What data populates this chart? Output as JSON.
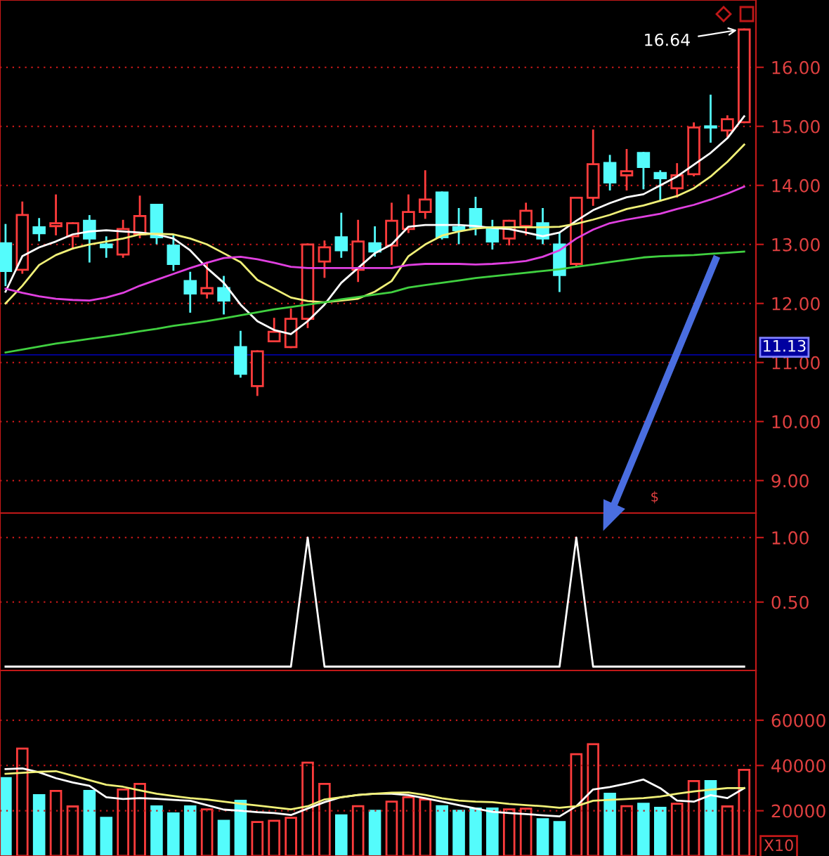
{
  "chart_data": [
    {
      "type": "candlestick",
      "categories": [
        null,
        null,
        null,
        null,
        null,
        null,
        null,
        null,
        null,
        null,
        null,
        null,
        null,
        null,
        null,
        null,
        null,
        null,
        null,
        null,
        null,
        null,
        null,
        null,
        null,
        null,
        null,
        null,
        null,
        null,
        null,
        null,
        null,
        null,
        null,
        null,
        null,
        null,
        null,
        null,
        null,
        null,
        null,
        null,
        null
      ],
      "ohlc": [
        [
          13.02,
          13.33,
          12.31,
          12.55
        ],
        [
          12.57,
          13.71,
          12.52,
          13.5
        ],
        [
          13.29,
          13.43,
          13.07,
          13.19
        ],
        [
          13.31,
          13.83,
          13.17,
          13.36
        ],
        [
          13.14,
          13.36,
          12.93,
          13.36
        ],
        [
          13.4,
          13.48,
          12.71,
          13.1
        ],
        [
          13.0,
          13.12,
          12.79,
          12.95
        ],
        [
          12.83,
          13.4,
          12.79,
          13.26
        ],
        [
          13.17,
          13.81,
          13.12,
          13.48
        ],
        [
          13.67,
          13.67,
          13.02,
          13.12
        ],
        [
          12.98,
          13.14,
          12.57,
          12.67
        ],
        [
          12.38,
          12.52,
          11.86,
          12.17
        ],
        [
          12.17,
          12.69,
          12.1,
          12.26
        ],
        [
          12.26,
          12.45,
          11.83,
          12.05
        ],
        [
          11.26,
          11.52,
          10.76,
          10.81
        ],
        [
          10.6,
          11.19,
          10.45,
          11.19
        ],
        [
          11.36,
          11.74,
          11.36,
          11.52
        ],
        [
          11.26,
          11.9,
          11.26,
          11.74
        ],
        [
          11.74,
          13.0,
          11.6,
          13.0
        ],
        [
          12.71,
          13.05,
          12.45,
          12.95
        ],
        [
          13.12,
          13.52,
          12.79,
          12.9
        ],
        [
          12.57,
          13.4,
          12.38,
          13.05
        ],
        [
          13.02,
          13.29,
          12.81,
          12.88
        ],
        [
          12.98,
          13.69,
          12.67,
          13.4
        ],
        [
          13.26,
          13.83,
          13.21,
          13.55
        ],
        [
          13.55,
          14.24,
          13.45,
          13.76
        ],
        [
          13.88,
          13.88,
          13.1,
          13.12
        ],
        [
          13.29,
          13.6,
          13.02,
          13.24
        ],
        [
          13.6,
          13.79,
          13.17,
          13.29
        ],
        [
          13.29,
          13.4,
          12.93,
          13.05
        ],
        [
          13.1,
          13.4,
          13.0,
          13.4
        ],
        [
          13.31,
          13.69,
          13.17,
          13.57
        ],
        [
          13.36,
          13.6,
          13.02,
          13.1
        ],
        [
          13.0,
          13.19,
          12.21,
          12.48
        ],
        [
          12.67,
          13.79,
          12.64,
          13.79
        ],
        [
          13.79,
          14.93,
          13.67,
          14.36
        ],
        [
          14.38,
          14.5,
          13.93,
          14.05
        ],
        [
          14.17,
          14.6,
          13.93,
          14.24
        ],
        [
          14.55,
          14.55,
          13.95,
          14.31
        ],
        [
          14.21,
          14.24,
          13.74,
          14.12
        ],
        [
          13.95,
          14.36,
          13.81,
          14.17
        ],
        [
          14.19,
          15.05,
          14.17,
          14.98
        ],
        [
          15.0,
          15.52,
          14.74,
          14.98
        ],
        [
          14.93,
          15.17,
          14.83,
          15.12
        ],
        [
          15.07,
          16.64,
          15.07,
          16.64
        ]
      ],
      "colors": [
        "#54fcfc",
        "#ff3c3c",
        "#54fcfc",
        "#ff3c3c",
        "#ff3c3c",
        "#54fcfc",
        "#54fcfc",
        "#ff3c3c",
        "#ff3c3c",
        "#54fcfc",
        "#54fcfc",
        "#54fcfc",
        "#ff3c3c",
        "#54fcfc",
        "#54fcfc",
        "#ff3c3c",
        "#ff3c3c",
        "#ff3c3c",
        "#ff3c3c",
        "#ff3c3c",
        "#54fcfc",
        "#ff3c3c",
        "#54fcfc",
        "#ff3c3c",
        "#ff3c3c",
        "#ff3c3c",
        "#54fcfc",
        "#54fcfc",
        "#54fcfc",
        "#54fcfc",
        "#ff3c3c",
        "#ff3c3c",
        "#54fcfc",
        "#54fcfc",
        "#ff3c3c",
        "#ff3c3c",
        "#54fcfc",
        "#ff3c3c",
        "#54fcfc",
        "#54fcfc",
        "#ff3c3c",
        "#ff3c3c",
        "#54fcfc",
        "#ff3c3c",
        "#ff3c3c"
      ],
      "series": [
        {
          "type": "line",
          "color": "#ffffff",
          "values": [
            12.2,
            12.8,
            12.95,
            13.05,
            13.17,
            13.22,
            13.24,
            13.22,
            13.2,
            13.17,
            13.1,
            12.9,
            12.6,
            12.35,
            11.98,
            11.7,
            11.55,
            11.48,
            11.7,
            11.98,
            12.35,
            12.6,
            12.85,
            13.0,
            13.3,
            13.33,
            13.33,
            13.33,
            13.31,
            13.28,
            13.26,
            13.2,
            13.14,
            13.2,
            13.4,
            13.58,
            13.7,
            13.8,
            13.85,
            14.0,
            14.15,
            14.35,
            14.55,
            14.8,
            15.17
          ]
        },
        {
          "type": "line",
          "color": "#f0f078",
          "values": [
            12.0,
            12.3,
            12.65,
            12.82,
            12.93,
            13.0,
            13.05,
            13.1,
            13.17,
            13.18,
            13.17,
            13.1,
            13.0,
            12.85,
            12.7,
            12.4,
            12.25,
            12.1,
            12.04,
            12.02,
            12.05,
            12.08,
            12.2,
            12.38,
            12.8,
            13.0,
            13.15,
            13.22,
            13.27,
            13.29,
            13.29,
            13.29,
            13.29,
            13.3,
            13.35,
            13.42,
            13.5,
            13.6,
            13.66,
            13.74,
            13.82,
            13.95,
            14.15,
            14.4,
            14.69
          ]
        },
        {
          "type": "line",
          "color": "#e040e0",
          "values": [
            12.25,
            12.18,
            12.12,
            12.08,
            12.06,
            12.05,
            12.1,
            12.18,
            12.3,
            12.4,
            12.5,
            12.6,
            12.69,
            12.77,
            12.79,
            12.75,
            12.69,
            12.62,
            12.6,
            12.6,
            12.6,
            12.6,
            12.6,
            12.6,
            12.65,
            12.67,
            12.67,
            12.67,
            12.66,
            12.67,
            12.69,
            12.72,
            12.79,
            12.9,
            13.1,
            13.25,
            13.36,
            13.42,
            13.47,
            13.52,
            13.6,
            13.67,
            13.76,
            13.86,
            13.98
          ]
        },
        {
          "type": "line",
          "color": "#40d040",
          "values": [
            11.17,
            11.22,
            11.27,
            11.32,
            11.36,
            11.4,
            11.44,
            11.48,
            11.53,
            11.57,
            11.62,
            11.66,
            11.7,
            11.75,
            11.8,
            11.85,
            11.9,
            11.94,
            11.98,
            12.02,
            12.07,
            12.11,
            12.15,
            12.19,
            12.27,
            12.31,
            12.35,
            12.39,
            12.43,
            12.46,
            12.49,
            12.52,
            12.55,
            12.58,
            12.62,
            12.66,
            12.7,
            12.74,
            12.78,
            12.8,
            12.81,
            12.82,
            12.84,
            12.86,
            12.88
          ]
        }
      ],
      "ylim": [
        8.45,
        17.14
      ],
      "yticks": [
        {
          "value": 9,
          "label": "9.00"
        },
        {
          "value": 10,
          "label": "10.00"
        },
        {
          "value": 11,
          "label": "11.00"
        },
        {
          "value": 12,
          "label": "12.00"
        },
        {
          "value": 13,
          "label": "13.00"
        },
        {
          "value": 14,
          "label": "14.00"
        },
        {
          "value": 15,
          "label": "15.00"
        },
        {
          "value": 16,
          "label": "16.00"
        }
      ],
      "grid": "y",
      "tick_labels": "y",
      "ref_lines": [
        {
          "axis": "y",
          "value": 11.13,
          "label": "11.13",
          "color": "#0000a0"
        }
      ],
      "annotations": [
        "16.64",
        "$"
      ]
    },
    {
      "type": "line",
      "categories": [
        null,
        null,
        null,
        null,
        null,
        null,
        null,
        null,
        null,
        null,
        null,
        null,
        null,
        null,
        null,
        null,
        null,
        null,
        null,
        null,
        null,
        null,
        null,
        null,
        null,
        null,
        null,
        null,
        null,
        null,
        null,
        null,
        null,
        null,
        null,
        null,
        null,
        null,
        null,
        null,
        null,
        null,
        null,
        null,
        null
      ],
      "series": [
        {
          "color": "#ffffff",
          "values": [
            0,
            0,
            0,
            0,
            0,
            0,
            0,
            0,
            0,
            0,
            0,
            0,
            0,
            0,
            0,
            0,
            0,
            0,
            1,
            0,
            0,
            0,
            0,
            0,
            0,
            0,
            0,
            0,
            0,
            0,
            0,
            0,
            0,
            0,
            1,
            0,
            0,
            0,
            0,
            0,
            0,
            0,
            0,
            0,
            0
          ]
        }
      ],
      "ylim": [
        -0.03,
        1.19
      ],
      "yticks": [
        {
          "value": 0.5,
          "label": "0.50"
        },
        {
          "value": 1,
          "label": "1.00"
        }
      ],
      "grid": "y",
      "tick_labels": "y"
    },
    {
      "type": "bar",
      "categories": [
        null,
        null,
        null,
        null,
        null,
        null,
        null,
        null,
        null,
        null,
        null,
        null,
        null,
        null,
        null,
        null,
        null,
        null,
        null,
        null,
        null,
        null,
        null,
        null,
        null,
        null,
        null,
        null,
        null,
        null,
        null,
        null,
        null,
        null,
        null,
        null,
        null,
        null,
        null,
        null,
        null,
        null,
        null,
        null,
        null
      ],
      "series": [
        {
          "type": "bar",
          "values": [
            34400,
            47500,
            26900,
            28800,
            21900,
            28800,
            16900,
            29400,
            31900,
            21900,
            18800,
            21900,
            20600,
            15600,
            24400,
            15000,
            15600,
            16900,
            41300,
            31900,
            18000,
            22000,
            20000,
            24000,
            26000,
            25000,
            22000,
            20000,
            21000,
            21000,
            20600,
            20900,
            16300,
            15000,
            45000,
            49400,
            27500,
            22000,
            23100,
            21300,
            23100,
            33100,
            33100,
            21900,
            38100
          ],
          "colors": [
            "#54fcfc",
            "#ff3c3c",
            "#54fcfc",
            "#ff3c3c",
            "#ff3c3c",
            "#54fcfc",
            "#54fcfc",
            "#ff3c3c",
            "#ff3c3c",
            "#54fcfc",
            "#54fcfc",
            "#54fcfc",
            "#ff3c3c",
            "#54fcfc",
            "#54fcfc",
            "#ff3c3c",
            "#ff3c3c",
            "#ff3c3c",
            "#ff3c3c",
            "#ff3c3c",
            "#54fcfc",
            "#ff3c3c",
            "#54fcfc",
            "#ff3c3c",
            "#ff3c3c",
            "#ff3c3c",
            "#54fcfc",
            "#54fcfc",
            "#54fcfc",
            "#54fcfc",
            "#ff3c3c",
            "#ff3c3c",
            "#54fcfc",
            "#54fcfc",
            "#ff3c3c",
            "#ff3c3c",
            "#54fcfc",
            "#ff3c3c",
            "#54fcfc",
            "#54fcfc",
            "#ff3c3c",
            "#ff3c3c",
            "#54fcfc",
            "#ff3c3c",
            "#ff3c3c"
          ]
        },
        {
          "type": "line",
          "color": "#ffffff",
          "values": [
            38400,
            38700,
            37000,
            34400,
            32500,
            31000,
            26000,
            25200,
            25600,
            25300,
            24800,
            24400,
            22500,
            20500,
            20000,
            19400,
            19000,
            18100,
            21000,
            23800,
            26000,
            27000,
            27500,
            27500,
            26900,
            25500,
            24000,
            22500,
            21000,
            19500,
            19000,
            18500,
            18000,
            17500,
            22000,
            29400,
            30500,
            32000,
            33800,
            30000,
            24500,
            24000,
            26900,
            25600,
            30000
          ]
        },
        {
          "type": "line",
          "color": "#f0f078",
          "values": [
            36300,
            36800,
            37200,
            37500,
            35500,
            33500,
            31500,
            30600,
            29000,
            27500,
            26500,
            25600,
            25000,
            24000,
            23100,
            22300,
            21500,
            20600,
            22000,
            25000,
            26000,
            27000,
            27500,
            28000,
            28100,
            27000,
            25500,
            24500,
            24000,
            23800,
            23000,
            22500,
            22000,
            21300,
            22000,
            24400,
            24800,
            25200,
            25600,
            26300,
            27500,
            28500,
            29300,
            30000,
            30000
          ]
        }
      ],
      "ylim": [
        0,
        82000
      ],
      "yticks": [
        20000,
        40000,
        60000
      ],
      "grid": "y",
      "tick_labels": "y",
      "annotations": [
        "X10"
      ]
    }
  ]
}
